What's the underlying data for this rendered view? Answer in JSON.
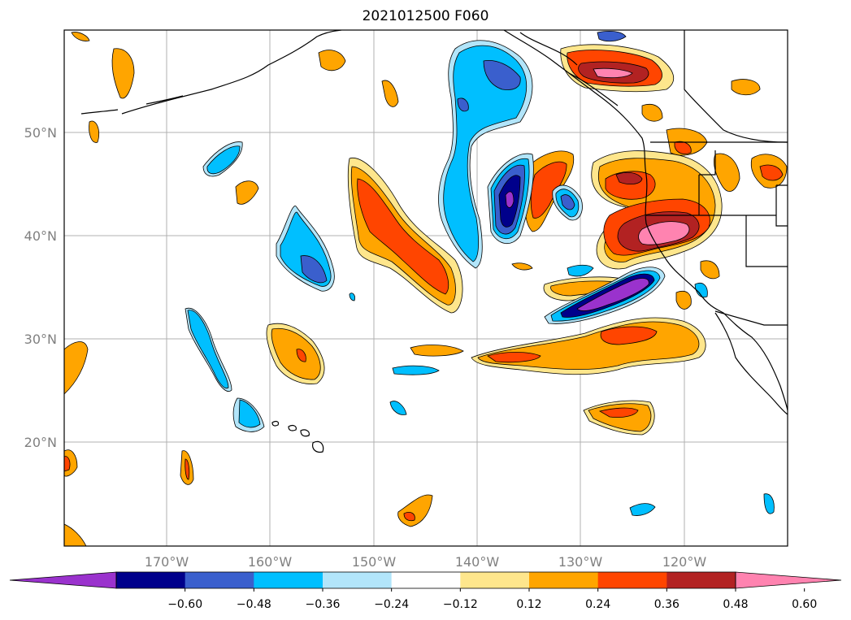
{
  "title": "2021012500 F060",
  "lat_labels": [
    "50°N",
    "40°N",
    "30°N",
    "20°N"
  ],
  "lon_labels": [
    "170°W",
    "160°W",
    "150°W",
    "140°W",
    "130°W",
    "120°W"
  ],
  "colorbar": {
    "colors": [
      "#9a32cd",
      "#00008b",
      "#3a5fcd",
      "#00bfff",
      "#b2e5fa",
      "#ffffff",
      "#fee68c",
      "#ffa500",
      "#ff4500",
      "#b22222",
      "#ff83b0"
    ],
    "tick_labels": [
      "−0.60",
      "−0.48",
      "−0.36",
      "−0.24",
      "−0.12",
      "0.12",
      "0.24",
      "0.36",
      "0.48",
      "0.60"
    ]
  }
}
